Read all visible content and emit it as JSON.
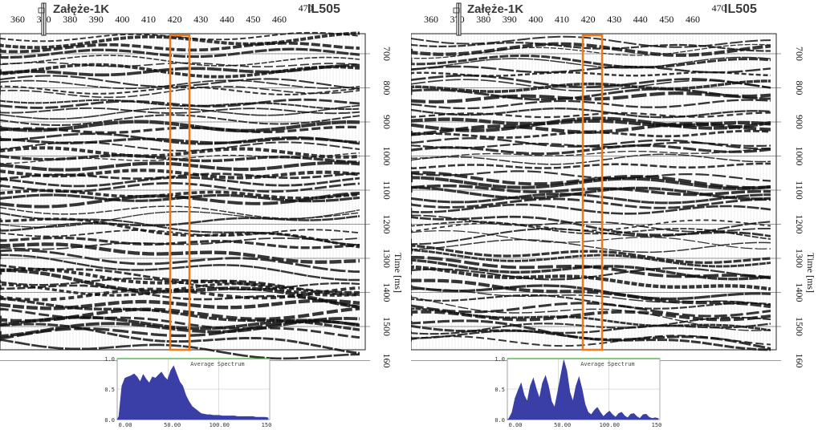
{
  "panels": [
    {
      "id": "left",
      "well_label": "Załęże-1K",
      "line_label": "IL505",
      "x_ticks": [
        "360",
        "370",
        "380",
        "390",
        "400",
        "410",
        "420",
        "430",
        "440",
        "450",
        "460",
        "470"
      ],
      "y_ticks": [
        "700",
        "800",
        "900",
        "1000",
        "1100",
        "1200",
        "1300",
        "1400",
        "1500",
        "160"
      ],
      "y_axis_title": "Time [ms]",
      "highlight_color": "#f07a1a",
      "spectrum": {
        "title": "Average Spectrum",
        "y_ticks": [
          "1.0",
          "0.5",
          "0.0"
        ],
        "x_ticks": [
          "0.00",
          "50.00",
          "100.00",
          "150"
        ],
        "fill_color": "#3a3fa8",
        "values": [
          0.05,
          0.55,
          0.68,
          0.7,
          0.72,
          0.75,
          0.7,
          0.62,
          0.74,
          0.66,
          0.6,
          0.7,
          0.68,
          0.73,
          0.78,
          0.7,
          0.65,
          0.8,
          0.88,
          0.75,
          0.62,
          0.55,
          0.4,
          0.3,
          0.22,
          0.18,
          0.14,
          0.1,
          0.09,
          0.08,
          0.08,
          0.07,
          0.07,
          0.07,
          0.06,
          0.06,
          0.06,
          0.06,
          0.06,
          0.05,
          0.05,
          0.05,
          0.05,
          0.05,
          0.05,
          0.04,
          0.04,
          0.04,
          0.04,
          0.03
        ]
      }
    },
    {
      "id": "right",
      "well_label": "Załęże-1K",
      "line_label": "IL505",
      "x_ticks": [
        "360",
        "370",
        "380",
        "390",
        "400",
        "410",
        "420",
        "430",
        "440",
        "450",
        "460",
        "470"
      ],
      "y_ticks": [
        "700",
        "800",
        "900",
        "1000",
        "1100",
        "1200",
        "1300",
        "1400",
        "1500",
        "160"
      ],
      "y_axis_title": "Time [ms]",
      "highlight_color": "#f07a1a",
      "spectrum": {
        "title": "Average Spectrum",
        "y_ticks": [
          "1.0",
          "0.5",
          "0.0"
        ],
        "x_ticks": [
          "0.00",
          "50.00",
          "100.00",
          "150"
        ],
        "fill_color": "#3a3fa8",
        "values": [
          0.02,
          0.12,
          0.35,
          0.48,
          0.6,
          0.4,
          0.3,
          0.55,
          0.68,
          0.5,
          0.35,
          0.6,
          0.72,
          0.55,
          0.3,
          0.2,
          0.45,
          0.72,
          0.98,
          0.8,
          0.45,
          0.3,
          0.55,
          0.7,
          0.5,
          0.25,
          0.12,
          0.08,
          0.15,
          0.2,
          0.12,
          0.05,
          0.1,
          0.14,
          0.08,
          0.04,
          0.1,
          0.12,
          0.06,
          0.03,
          0.09,
          0.1,
          0.05,
          0.02,
          0.08,
          0.09,
          0.04,
          0.02,
          0.03,
          0.02
        ]
      }
    }
  ]
}
